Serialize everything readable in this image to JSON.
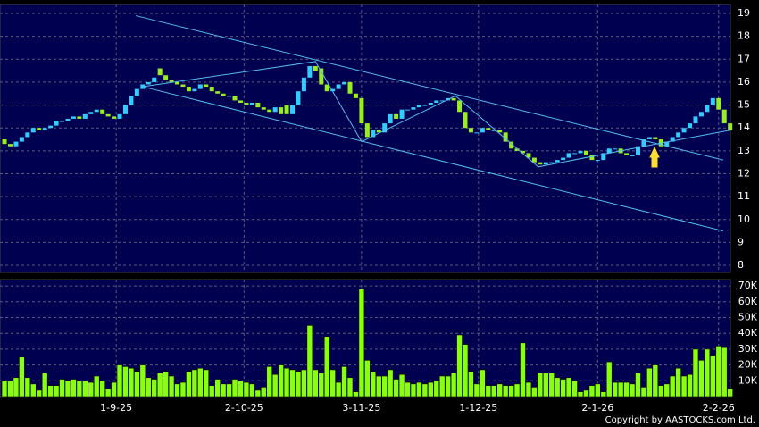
{
  "chart_data": [
    {
      "type": "candlestick",
      "xlim": [
        -0.78,
        126.05
      ],
      "ylim": [
        7.69,
        19.39
      ],
      "yticks": [
        8,
        9,
        10,
        11,
        12,
        13,
        14,
        15,
        16,
        17,
        18,
        19
      ],
      "grid": true,
      "up_color": "#33ccff",
      "down_color": "#99ee22",
      "line_color": "#55bbee",
      "open": [
        13.5,
        13.3,
        13.2,
        13.4,
        13.6,
        13.8,
        14.0,
        13.9,
        14.0,
        14.1,
        14.3,
        14.3,
        14.4,
        14.5,
        14.4,
        14.6,
        14.7,
        14.8,
        14.6,
        14.5,
        14.4,
        14.6,
        15.0,
        15.4,
        15.7,
        15.9,
        16.0,
        16.6,
        16.3,
        16.1,
        16.0,
        15.9,
        15.8,
        15.6,
        15.7,
        15.9,
        15.8,
        15.6,
        15.5,
        15.4,
        15.4,
        15.2,
        15.1,
        15.0,
        15.1,
        14.9,
        14.8,
        14.7,
        14.9,
        15.0,
        14.6,
        15.0,
        15.6,
        16.2,
        16.7,
        16.6,
        15.9,
        15.6,
        15.7,
        15.9,
        16.0,
        15.5,
        15.3,
        14.2,
        13.6,
        13.9,
        13.8,
        14.2,
        14.6,
        14.4,
        14.8,
        14.8,
        14.9,
        15.0,
        15.0,
        15.1,
        15.2,
        15.2,
        15.3,
        15.2,
        14.7,
        14.0,
        13.8,
        13.8,
        14.0,
        13.9,
        13.9,
        13.8,
        13.4,
        13.1,
        13.0,
        12.9,
        12.7,
        12.5,
        12.4,
        12.5,
        12.5,
        12.6,
        12.7,
        12.9,
        12.9,
        13.0,
        12.8,
        12.6,
        12.6,
        12.9,
        13.1,
        13.1,
        12.9,
        12.8,
        12.8,
        13.2,
        13.5,
        13.6,
        13.5,
        13.2,
        13.4,
        13.6,
        13.8,
        14.0,
        14.2,
        14.5,
        14.7,
        15.0,
        15.3,
        14.8,
        14.2
      ],
      "close": [
        13.3,
        13.2,
        13.4,
        13.6,
        13.8,
        14.0,
        13.9,
        14.0,
        14.1,
        14.3,
        14.3,
        14.4,
        14.5,
        14.4,
        14.6,
        14.7,
        14.8,
        14.6,
        14.5,
        14.4,
        14.6,
        15.0,
        15.4,
        15.7,
        15.9,
        16.0,
        16.2,
        16.3,
        16.1,
        16.0,
        15.9,
        15.8,
        15.6,
        15.7,
        15.9,
        15.8,
        15.6,
        15.5,
        15.4,
        15.4,
        15.2,
        15.1,
        15.0,
        15.1,
        14.9,
        14.8,
        14.7,
        14.9,
        14.6,
        14.6,
        15.0,
        15.6,
        16.2,
        16.7,
        16.5,
        15.9,
        15.6,
        15.7,
        15.9,
        16.0,
        15.5,
        15.3,
        14.2,
        13.6,
        13.9,
        13.8,
        14.2,
        14.6,
        14.4,
        14.8,
        14.8,
        14.9,
        15.0,
        15.0,
        15.1,
        15.2,
        15.2,
        15.3,
        15.2,
        14.7,
        14.0,
        13.8,
        13.8,
        14.0,
        13.9,
        13.9,
        13.8,
        13.4,
        13.1,
        13.0,
        12.9,
        12.7,
        12.5,
        12.4,
        12.5,
        12.5,
        12.6,
        12.7,
        12.9,
        12.9,
        13.0,
        12.8,
        12.6,
        12.6,
        12.9,
        13.1,
        13.1,
        12.9,
        12.8,
        12.8,
        13.2,
        13.5,
        13.6,
        13.5,
        13.2,
        13.4,
        13.6,
        13.8,
        14.0,
        14.2,
        14.5,
        14.7,
        15.0,
        15.3,
        14.8,
        14.2,
        13.9
      ],
      "trendlines": [
        {
          "x": [
            22.8,
            124.8
          ],
          "y": [
            18.9,
            12.6
          ]
        },
        {
          "x": [
            24.0,
            124.8
          ],
          "y": [
            15.8,
            9.5
          ]
        },
        {
          "x": [
            24.0,
            54.0,
            62.0,
            78.3,
            92.7,
            113.2,
            126.0
          ],
          "y": [
            15.8,
            16.9,
            13.4,
            15.4,
            12.3,
            13.3,
            13.9
          ]
        }
      ]
    },
    {
      "type": "bar",
      "xlim": [
        -0.78,
        126.05
      ],
      "ylim": [
        0,
        74000
      ],
      "color": "#88ff11",
      "yticks": [
        {
          "value": 10000,
          "label": "10K"
        },
        {
          "value": 20000,
          "label": "20K"
        },
        {
          "value": 30000,
          "label": "30K"
        },
        {
          "value": 40000,
          "label": "40K"
        },
        {
          "value": 50000,
          "label": "50K"
        },
        {
          "value": 60000,
          "label": "60K"
        },
        {
          "value": 70000,
          "label": "70K"
        }
      ],
      "xticks": [
        {
          "value": 19.4,
          "label": "1-9-25"
        },
        {
          "value": 41.6,
          "label": "2-10-25"
        },
        {
          "value": 62.0,
          "label": "3-11-25"
        },
        {
          "value": 82.3,
          "label": "1-12-25"
        },
        {
          "value": 103.0,
          "label": "2-1-26"
        },
        {
          "value": 124.0,
          "label": "2-2-26"
        }
      ],
      "values": [
        10000,
        10000,
        12000,
        25000,
        12000,
        8000,
        4000,
        15000,
        7000,
        7000,
        11000,
        10000,
        11000,
        10000,
        10000,
        9000,
        13000,
        10000,
        5000,
        9000,
        20000,
        19000,
        18000,
        16000,
        20000,
        12000,
        11000,
        15000,
        16000,
        13000,
        8000,
        9000,
        16000,
        17000,
        18000,
        17000,
        7000,
        11000,
        8000,
        8000,
        11000,
        10000,
        9000,
        8000,
        4000,
        6000,
        19000,
        14000,
        20000,
        18000,
        17000,
        16000,
        17000,
        45000,
        17000,
        15000,
        38000,
        17000,
        9000,
        19000,
        12000,
        3000,
        68000,
        23000,
        16000,
        13000,
        13000,
        17000,
        11000,
        14000,
        9000,
        8000,
        9000,
        8000,
        9000,
        10000,
        13000,
        13000,
        15000,
        39000,
        33000,
        16000,
        8000,
        17000,
        7000,
        7000,
        8000,
        7000,
        7000,
        8000,
        34000,
        9000,
        6000,
        15000,
        15000,
        15000,
        12000,
        11000,
        12000,
        10000,
        3000,
        4000,
        7000,
        8000,
        3000,
        22000,
        9000,
        9000,
        9000,
        8000,
        15000,
        6000,
        18000,
        20000,
        7000,
        8000,
        13000,
        18000,
        13000,
        14000,
        30000,
        23000,
        30000,
        26000,
        32000,
        31000,
        5000
      ]
    }
  ],
  "footer": "Copyright by AASTOCKS.com Ltd."
}
